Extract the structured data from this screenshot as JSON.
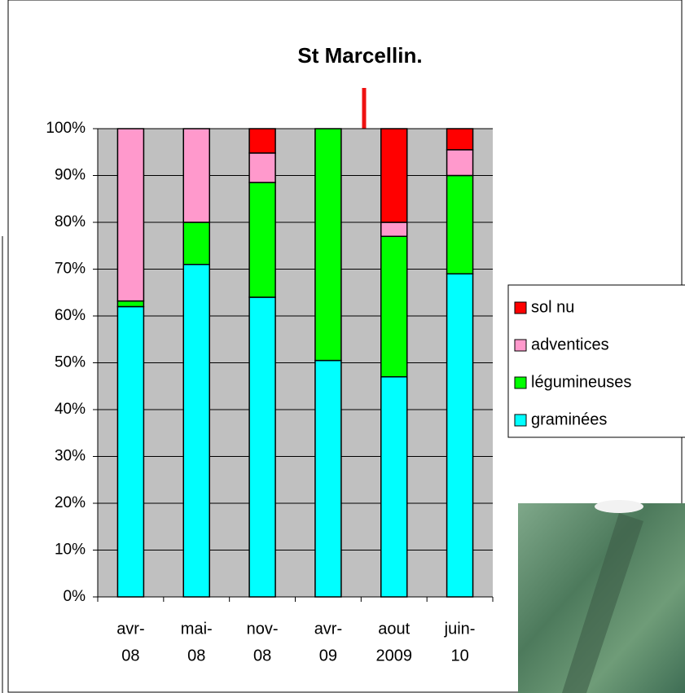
{
  "chart_data": {
    "type": "stacked_bar",
    "title": "St Marcellin.",
    "categories": [
      [
        "avr-",
        "08"
      ],
      [
        "mai-",
        "08"
      ],
      [
        "nov-",
        "08"
      ],
      [
        "avr-",
        "09"
      ],
      [
        "aout",
        "2009"
      ],
      [
        "juin-",
        "10"
      ]
    ],
    "series": [
      {
        "name": "graminées",
        "color": "#00ffff",
        "values": [
          62,
          71,
          64,
          50.5,
          47,
          69
        ]
      },
      {
        "name": "légumineuses",
        "color": "#00ff00",
        "values": [
          1.2,
          9,
          24.5,
          49.5,
          30,
          21
        ]
      },
      {
        "name": "adventices",
        "color": "#ff99cc",
        "values": [
          36.8,
          20,
          6.3,
          0,
          3,
          5.5
        ]
      },
      {
        "name": "sol nu",
        "color": "#ff0000",
        "values": [
          0,
          0,
          5.2,
          0,
          20,
          4.5
        ]
      }
    ],
    "ylim": [
      0,
      100
    ],
    "yticks": [
      {
        "value": 0,
        "label": "0%"
      },
      {
        "value": 10,
        "label": "10%"
      },
      {
        "value": 20,
        "label": "20%"
      },
      {
        "value": 30,
        "label": "30%"
      },
      {
        "value": 40,
        "label": "40%"
      },
      {
        "value": 50,
        "label": "50%"
      },
      {
        "value": 60,
        "label": "60%"
      },
      {
        "value": 70,
        "label": "70%"
      },
      {
        "value": 80,
        "label": "80%"
      },
      {
        "value": 90,
        "label": "90%"
      },
      {
        "value": 100,
        "label": "100%"
      }
    ],
    "grid": true
  }
}
